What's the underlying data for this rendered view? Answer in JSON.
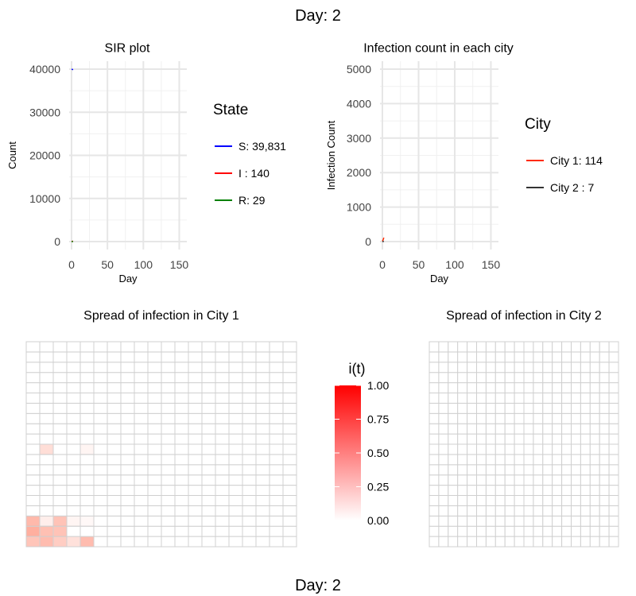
{
  "title_top": "Day: 2",
  "title_bottom": "Day: 2",
  "colors": {
    "S": "#0000ff",
    "I": "#ff0000",
    "R": "#008000",
    "city1": "#ff2a00",
    "city2": "#333333",
    "heat_high": "#ff0000",
    "heat_low": "#ffffff"
  },
  "chart_data": [
    {
      "type": "line",
      "title": "SIR plot",
      "xlabel": "Day",
      "ylabel": "Count",
      "xlim": [
        0,
        155
      ],
      "ylim": [
        0,
        40000
      ],
      "xticks": [
        "0",
        "50",
        "100",
        "150"
      ],
      "yticks": [
        "0",
        "10000",
        "20000",
        "30000",
        "40000"
      ],
      "legend_title": "State",
      "legend_position": "right",
      "series": [
        {
          "name": "S",
          "label": "S: 39,831",
          "x": [
            0,
            1,
            2
          ],
          "y": [
            39990,
            39950,
            39831
          ]
        },
        {
          "name": "I",
          "label": "I :    140",
          "x": [
            0,
            1,
            2
          ],
          "y": [
            10,
            60,
            140
          ]
        },
        {
          "name": "R",
          "label": "R:    29",
          "x": [
            0,
            1,
            2
          ],
          "y": [
            0,
            5,
            29
          ]
        }
      ]
    },
    {
      "type": "line",
      "title": "Infection count in each city",
      "xlabel": "Day",
      "ylabel": "Infection Count",
      "xlim": [
        0,
        155
      ],
      "ylim": [
        0,
        5000
      ],
      "xticks": [
        "0",
        "50",
        "100",
        "150"
      ],
      "yticks": [
        "0",
        "1000",
        "2000",
        "3000",
        "4000",
        "5000"
      ],
      "legend_title": "City",
      "legend_position": "right",
      "series": [
        {
          "name": "City 1",
          "label": "City 1: 114",
          "x": [
            0,
            1,
            2
          ],
          "y": [
            10,
            50,
            114
          ]
        },
        {
          "name": "City 2",
          "label": "City 2 : 7",
          "x": [
            0,
            1,
            2
          ],
          "y": [
            0,
            2,
            7
          ]
        }
      ]
    },
    {
      "type": "heatmap",
      "title": "Spread of infection in City 1",
      "rows": 20,
      "cols": 20,
      "cells": [
        {
          "row": 0,
          "col": 0,
          "value": 0.35
        },
        {
          "row": 0,
          "col": 1,
          "value": 0.4
        },
        {
          "row": 0,
          "col": 2,
          "value": 0.3
        },
        {
          "row": 0,
          "col": 3,
          "value": 0.18
        },
        {
          "row": 0,
          "col": 4,
          "value": 0.4
        },
        {
          "row": 1,
          "col": 0,
          "value": 0.48
        },
        {
          "row": 1,
          "col": 1,
          "value": 0.38
        },
        {
          "row": 1,
          "col": 2,
          "value": 0.36
        },
        {
          "row": 2,
          "col": 0,
          "value": 0.42
        },
        {
          "row": 2,
          "col": 1,
          "value": 0.1
        },
        {
          "row": 2,
          "col": 2,
          "value": 0.36
        },
        {
          "row": 2,
          "col": 3,
          "value": 0.06
        },
        {
          "row": 2,
          "col": 4,
          "value": 0.04
        },
        {
          "row": 9,
          "col": 1,
          "value": 0.2
        },
        {
          "row": 9,
          "col": 4,
          "value": 0.06
        }
      ]
    },
    {
      "type": "heatmap",
      "title": "Spread of infection in City 2",
      "rows": 20,
      "cols": 20,
      "cells": []
    }
  ],
  "colorbar": {
    "title": "i(t)",
    "range": [
      0,
      1
    ],
    "ticks": [
      "0.00",
      "0.25",
      "0.50",
      "0.75",
      "1.00"
    ]
  }
}
